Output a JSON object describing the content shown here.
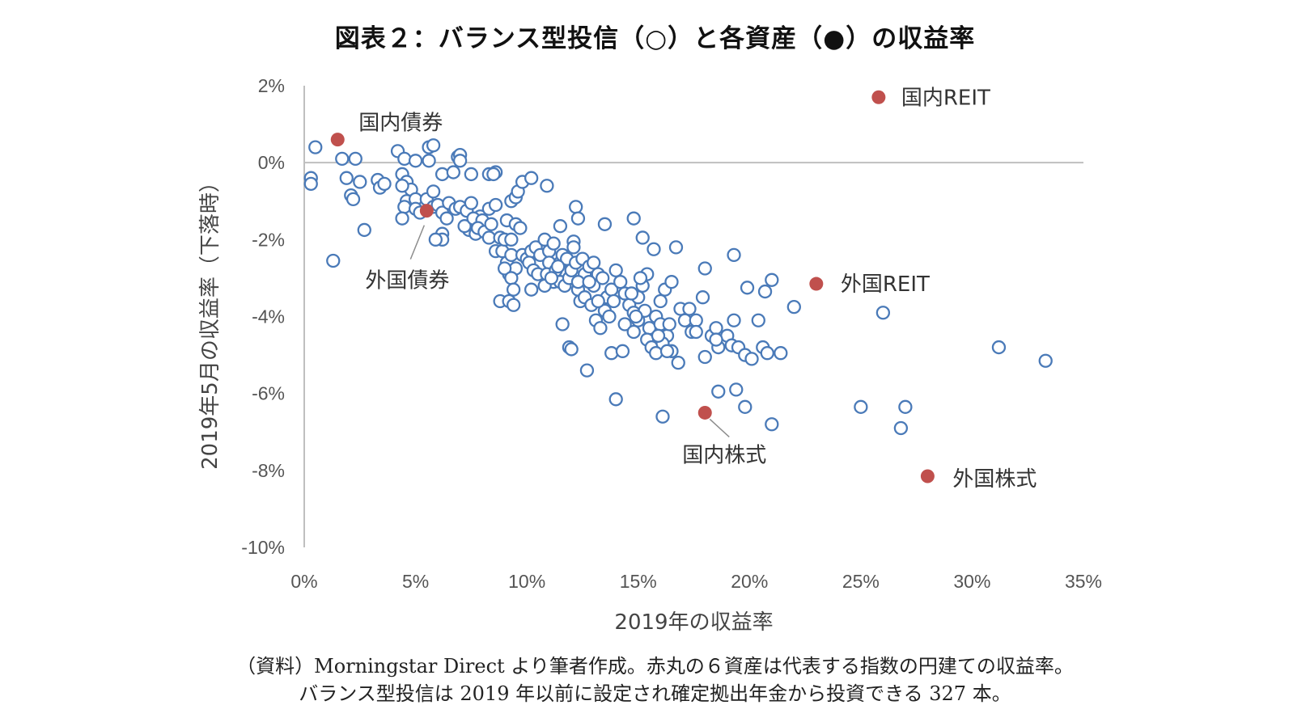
{
  "title": "図表２：バランス型投信（○）と各資産（●）の収益率",
  "note_line1": "（資料）Morningstar Direct より筆者作成。赤丸の６資産は代表する指数の円建ての収益率。",
  "note_line2": "バランス型投信は 2019 年以前に設定され確定拠出年金から投資できる 327 本。",
  "chart_data": {
    "type": "scatter",
    "xlabel": "2019年の収益率",
    "ylabel": "2019年5月の収益率（下落時）",
    "xlim": [
      0,
      35
    ],
    "ylim": [
      -10,
      2
    ],
    "x_ticks": [
      "0%",
      "5%",
      "10%",
      "15%",
      "20%",
      "25%",
      "30%",
      "35%"
    ],
    "y_ticks": [
      "2%",
      "0%",
      "-2%",
      "-4%",
      "-6%",
      "-8%",
      "-10%"
    ],
    "grid": false,
    "colors": {
      "funds": "#4a7ab8",
      "assets": "#c0504d"
    },
    "series": [
      {
        "name": "バランス型投信",
        "marker": "open-circle",
        "points": [
          [
            0.5,
            0.4
          ],
          [
            0.3,
            -0.4
          ],
          [
            0.3,
            -0.55
          ],
          [
            1.7,
            0.1
          ],
          [
            2.3,
            0.1
          ],
          [
            1.9,
            -0.4
          ],
          [
            2.5,
            -0.5
          ],
          [
            2.1,
            -0.85
          ],
          [
            2.2,
            -0.95
          ],
          [
            3.3,
            -0.45
          ],
          [
            3.4,
            -0.65
          ],
          [
            3.6,
            -0.55
          ],
          [
            2.7,
            -1.75
          ],
          [
            1.3,
            -2.55
          ],
          [
            4.2,
            0.3
          ],
          [
            4.5,
            0.1
          ],
          [
            5.0,
            0.05
          ],
          [
            5.6,
            0.4
          ],
          [
            5.8,
            0.45
          ],
          [
            5.6,
            0.05
          ],
          [
            4.4,
            -0.3
          ],
          [
            4.6,
            -0.5
          ],
          [
            4.8,
            -0.7
          ],
          [
            4.4,
            -0.6
          ],
          [
            4.6,
            -1.0
          ],
          [
            4.5,
            -1.15
          ],
          [
            5.0,
            -0.95
          ],
          [
            5.5,
            -0.95
          ],
          [
            5.8,
            -0.75
          ],
          [
            6.2,
            -0.3
          ],
          [
            6.7,
            -0.25
          ],
          [
            6.9,
            0.15
          ],
          [
            7.0,
            0.2
          ],
          [
            7.0,
            0.05
          ],
          [
            7.5,
            -0.3
          ],
          [
            8.3,
            -0.3
          ],
          [
            8.6,
            -0.25
          ],
          [
            8.5,
            -0.3
          ],
          [
            4.4,
            -1.45
          ],
          [
            5.0,
            -1.2
          ],
          [
            5.2,
            -1.3
          ],
          [
            5.8,
            -1.15
          ],
          [
            6.0,
            -1.1
          ],
          [
            6.2,
            -1.3
          ],
          [
            6.4,
            -1.45
          ],
          [
            6.5,
            -1.05
          ],
          [
            6.8,
            -1.2
          ],
          [
            7.0,
            -1.15
          ],
          [
            7.3,
            -1.25
          ],
          [
            7.5,
            -1.05
          ],
          [
            6.2,
            -1.85
          ],
          [
            6.2,
            -2.0
          ],
          [
            5.9,
            -2.0
          ],
          [
            7.4,
            -1.75
          ],
          [
            7.2,
            -1.65
          ],
          [
            7.9,
            -1.4
          ],
          [
            7.6,
            -1.45
          ],
          [
            8.0,
            -1.5
          ],
          [
            7.7,
            -1.85
          ],
          [
            7.8,
            -1.7
          ],
          [
            8.1,
            -1.8
          ],
          [
            8.3,
            -1.2
          ],
          [
            8.6,
            -1.1
          ],
          [
            8.4,
            -1.6
          ],
          [
            8.3,
            -1.95
          ],
          [
            8.8,
            -1.95
          ],
          [
            8.6,
            -2.3
          ],
          [
            8.9,
            -2.3
          ],
          [
            9.1,
            -1.5
          ],
          [
            9.0,
            -2.0
          ],
          [
            9.3,
            -2.0
          ],
          [
            9.5,
            -1.6
          ],
          [
            9.7,
            -1.7
          ],
          [
            9.3,
            -1.0
          ],
          [
            9.5,
            -0.9
          ],
          [
            9.6,
            -0.75
          ],
          [
            9.8,
            -0.5
          ],
          [
            10.2,
            -0.4
          ],
          [
            9.1,
            -2.6
          ],
          [
            9.3,
            -2.4
          ],
          [
            9.2,
            -2.9
          ],
          [
            9.5,
            -2.75
          ],
          [
            9.0,
            -2.75
          ],
          [
            9.3,
            -3.0
          ],
          [
            9.4,
            -3.3
          ],
          [
            8.8,
            -3.6
          ],
          [
            9.2,
            -3.6
          ],
          [
            9.4,
            -3.7
          ],
          [
            9.8,
            -2.4
          ],
          [
            10.0,
            -2.5
          ],
          [
            10.2,
            -2.3
          ],
          [
            10.4,
            -2.2
          ],
          [
            10.1,
            -2.6
          ],
          [
            10.3,
            -2.8
          ],
          [
            10.5,
            -2.9
          ],
          [
            10.2,
            -3.3
          ],
          [
            10.6,
            -2.4
          ],
          [
            10.8,
            -2.0
          ],
          [
            11.0,
            -2.3
          ],
          [
            11.2,
            -2.1
          ],
          [
            11.0,
            -2.6
          ],
          [
            10.9,
            -2.9
          ],
          [
            11.2,
            -3.1
          ],
          [
            11.3,
            -2.8
          ],
          [
            11.5,
            -2.6
          ],
          [
            11.6,
            -2.4
          ],
          [
            11.8,
            -2.5
          ],
          [
            11.5,
            -3.1
          ],
          [
            11.7,
            -3.2
          ],
          [
            11.9,
            -3.0
          ],
          [
            12.0,
            -2.8
          ],
          [
            12.2,
            -2.6
          ],
          [
            12.3,
            -3.3
          ],
          [
            12.5,
            -2.5
          ],
          [
            12.6,
            -2.9
          ],
          [
            12.8,
            -2.7
          ],
          [
            12.4,
            -3.6
          ],
          [
            12.6,
            -3.5
          ],
          [
            12.9,
            -3.7
          ],
          [
            11.6,
            -4.2
          ],
          [
            11.9,
            -4.8
          ],
          [
            12.0,
            -4.85
          ],
          [
            10.9,
            -0.6
          ],
          [
            12.2,
            -1.15
          ],
          [
            12.3,
            -1.45
          ],
          [
            11.5,
            -1.65
          ],
          [
            12.1,
            -2.05
          ],
          [
            13.5,
            -1.6
          ],
          [
            13.0,
            -3.2
          ],
          [
            13.2,
            -2.9
          ],
          [
            13.4,
            -3.0
          ],
          [
            13.6,
            -3.5
          ],
          [
            13.8,
            -3.3
          ],
          [
            13.5,
            -3.85
          ],
          [
            13.1,
            -4.1
          ],
          [
            13.3,
            -4.3
          ],
          [
            14.0,
            -2.8
          ],
          [
            14.2,
            -3.1
          ],
          [
            14.4,
            -3.4
          ],
          [
            14.6,
            -3.7
          ],
          [
            14.8,
            -3.9
          ],
          [
            14.4,
            -4.2
          ],
          [
            14.8,
            -4.4
          ],
          [
            15.0,
            -3.5
          ],
          [
            15.2,
            -3.2
          ],
          [
            15.4,
            -2.9
          ],
          [
            15.5,
            -4.3
          ],
          [
            15.4,
            -4.6
          ],
          [
            15.6,
            -4.8
          ],
          [
            15.0,
            -4.1
          ],
          [
            15.3,
            -3.85
          ],
          [
            15.8,
            -4.0
          ],
          [
            16.0,
            -3.6
          ],
          [
            16.2,
            -3.3
          ],
          [
            16.5,
            -3.1
          ],
          [
            16.0,
            -4.2
          ],
          [
            16.3,
            -4.5
          ],
          [
            16.1,
            -4.7
          ],
          [
            16.5,
            -4.9
          ],
          [
            15.8,
            -4.95
          ],
          [
            14.8,
            -1.45
          ],
          [
            15.2,
            -1.95
          ],
          [
            15.7,
            -2.25
          ],
          [
            16.7,
            -2.2
          ],
          [
            16.9,
            -3.8
          ],
          [
            17.1,
            -4.1
          ],
          [
            17.3,
            -3.8
          ],
          [
            17.6,
            -4.1
          ],
          [
            17.4,
            -4.4
          ],
          [
            17.9,
            -3.5
          ],
          [
            18.0,
            -2.75
          ],
          [
            18.3,
            -4.5
          ],
          [
            18.5,
            -4.3
          ],
          [
            18.6,
            -4.8
          ],
          [
            19.0,
            -4.5
          ],
          [
            19.3,
            -4.1
          ],
          [
            19.2,
            -4.75
          ],
          [
            19.3,
            -2.4
          ],
          [
            19.5,
            -4.8
          ],
          [
            18.0,
            -5.05
          ],
          [
            18.6,
            -5.95
          ],
          [
            16.8,
            -5.2
          ],
          [
            16.3,
            -4.9
          ],
          [
            13.8,
            -4.95
          ],
          [
            14.3,
            -4.9
          ],
          [
            12.7,
            -5.4
          ],
          [
            14.0,
            -6.15
          ],
          [
            16.1,
            -6.6
          ],
          [
            19.4,
            -5.9
          ],
          [
            19.8,
            -6.35
          ],
          [
            19.8,
            -5.0
          ],
          [
            20.1,
            -5.1
          ],
          [
            20.6,
            -4.8
          ],
          [
            20.8,
            -4.95
          ],
          [
            19.9,
            -3.25
          ],
          [
            20.4,
            -4.1
          ],
          [
            20.7,
            -3.35
          ],
          [
            21.0,
            -3.05
          ],
          [
            21.4,
            -4.95
          ],
          [
            22.0,
            -3.75
          ],
          [
            21.0,
            -6.8
          ],
          [
            25.0,
            -6.35
          ],
          [
            26.0,
            -3.9
          ],
          [
            26.8,
            -6.9
          ],
          [
            27.0,
            -6.35
          ],
          [
            31.2,
            -4.8
          ],
          [
            33.3,
            -5.15
          ],
          [
            13.2,
            -3.6
          ],
          [
            13.7,
            -4.0
          ],
          [
            14.9,
            -4.0
          ],
          [
            12.3,
            -3.1
          ],
          [
            11.4,
            -2.7
          ],
          [
            10.8,
            -3.2
          ],
          [
            11.1,
            -3.0
          ],
          [
            12.1,
            -2.2
          ],
          [
            13.0,
            -2.6
          ],
          [
            13.9,
            -3.6
          ],
          [
            15.1,
            -3.0
          ],
          [
            16.4,
            -4.2
          ],
          [
            17.6,
            -4.4
          ],
          [
            18.5,
            -4.6
          ],
          [
            15.9,
            -4.5
          ],
          [
            14.7,
            -3.4
          ],
          [
            12.8,
            -3.1
          ]
        ]
      },
      {
        "name": "各資産",
        "marker": "filled-circle",
        "points": [
          {
            "label": "国内債券",
            "x": 1.5,
            "y": 0.6
          },
          {
            "label": "外国債券",
            "x": 5.5,
            "y": -1.25
          },
          {
            "label": "国内REIT",
            "x": 25.8,
            "y": 1.7
          },
          {
            "label": "外国REIT",
            "x": 23.0,
            "y": -3.15
          },
          {
            "label": "国内株式",
            "x": 18.0,
            "y": -6.5
          },
          {
            "label": "外国株式",
            "x": 28.0,
            "y": -8.15
          }
        ]
      }
    ]
  }
}
